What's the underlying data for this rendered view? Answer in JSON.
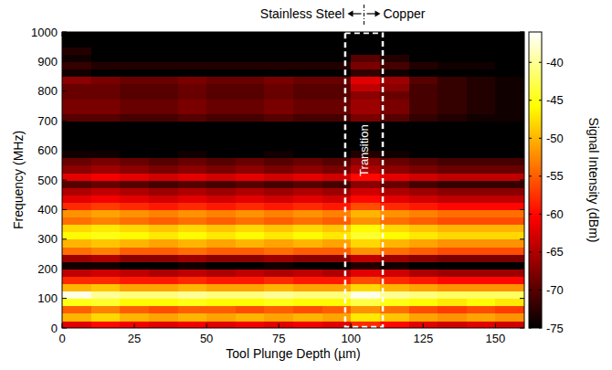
{
  "chart_data": {
    "type": "heatmap",
    "x_label": "Tool Plunge Depth (µm)",
    "y_label": "Frequency (MHz)",
    "xlim": [
      0,
      160
    ],
    "ylim": [
      0,
      1000
    ],
    "xticks": [
      0,
      25,
      50,
      75,
      100,
      125,
      150
    ],
    "yticks": [
      0,
      100,
      200,
      300,
      400,
      500,
      600,
      700,
      800,
      900,
      1000
    ],
    "x_bins": [
      0,
      10,
      20,
      30,
      40,
      50,
      60,
      70,
      80,
      90,
      100,
      110,
      120,
      130,
      140,
      150,
      160
    ],
    "y_bins": [
      0,
      25,
      50,
      75,
      100,
      125,
      150,
      175,
      200,
      225,
      250,
      275,
      300,
      325,
      350,
      375,
      400,
      425,
      450,
      475,
      500,
      525,
      550,
      575,
      600,
      625,
      650,
      675,
      700,
      725,
      750,
      775,
      800,
      825,
      850,
      875,
      900,
      925,
      950,
      975,
      1000
    ],
    "cells": [
      [
        -62,
        -60,
        -61,
        -62,
        -61,
        -62,
        -61,
        -62,
        -61,
        -62,
        -58,
        -60,
        -62,
        -63,
        -62,
        -63
      ],
      [
        -50,
        -48,
        -50,
        -51,
        -50,
        -51,
        -50,
        -51,
        -50,
        -51,
        -47,
        -49,
        -51,
        -52,
        -51,
        -52
      ],
      [
        -55,
        -53,
        -55,
        -56,
        -55,
        -55,
        -56,
        -55,
        -56,
        -55,
        -52,
        -54,
        -56,
        -57,
        -56,
        -57
      ],
      [
        -45,
        -44,
        -46,
        -46,
        -45,
        -46,
        -46,
        -45,
        -46,
        -46,
        -43,
        -45,
        -46,
        -47,
        -46,
        -47
      ],
      [
        -37,
        -40,
        -41,
        -41,
        -40,
        -41,
        -41,
        -40,
        -41,
        -41,
        -37,
        -40,
        -41,
        -42,
        -42,
        -42
      ],
      [
        -50,
        -49,
        -51,
        -51,
        -50,
        -51,
        -51,
        -50,
        -51,
        -51,
        -48,
        -50,
        -51,
        -52,
        -52,
        -52
      ],
      [
        -58,
        -58,
        -59,
        -59,
        -58,
        -59,
        -59,
        -58,
        -59,
        -59,
        -56,
        -58,
        -59,
        -60,
        -60,
        -60
      ],
      [
        -64,
        -63,
        -64,
        -65,
        -64,
        -65,
        -64,
        -65,
        -64,
        -65,
        -62,
        -63,
        -65,
        -66,
        -66,
        -66
      ],
      [
        -74,
        -74,
        -75,
        -75,
        -74,
        -75,
        -75,
        -74,
        -75,
        -75,
        -73,
        -74,
        -75,
        -75,
        -75,
        -75
      ],
      [
        -66,
        -65,
        -67,
        -67,
        -66,
        -67,
        -67,
        -66,
        -67,
        -67,
        -64,
        -66,
        -67,
        -68,
        -68,
        -68
      ],
      [
        -54,
        -53,
        -55,
        -55,
        -54,
        -55,
        -55,
        -54,
        -55,
        -55,
        -52,
        -54,
        -55,
        -56,
        -56,
        -56
      ],
      [
        -50,
        -49,
        -50,
        -51,
        -50,
        -51,
        -50,
        -51,
        -50,
        -51,
        -48,
        -50,
        -51,
        -52,
        -52,
        -52
      ],
      [
        -46,
        -45,
        -46,
        -47,
        -46,
        -47,
        -46,
        -47,
        -46,
        -47,
        -44,
        -46,
        -47,
        -48,
        -48,
        -48
      ],
      [
        -48,
        -47,
        -48,
        -49,
        -48,
        -49,
        -48,
        -49,
        -48,
        -49,
        -46,
        -48,
        -49,
        -50,
        -50,
        -50
      ],
      [
        -54,
        -53,
        -54,
        -55,
        -54,
        -55,
        -54,
        -55,
        -54,
        -55,
        -52,
        -54,
        -55,
        -56,
        -56,
        -56
      ],
      [
        -52,
        -51,
        -52,
        -53,
        -52,
        -53,
        -52,
        -53,
        -52,
        -53,
        -50,
        -52,
        -53,
        -54,
        -54,
        -54
      ],
      [
        -58,
        -57,
        -58,
        -59,
        -58,
        -59,
        -58,
        -59,
        -58,
        -59,
        -56,
        -58,
        -59,
        -60,
        -60,
        -60
      ],
      [
        -62,
        -61,
        -62,
        -63,
        -62,
        -63,
        -62,
        -63,
        -62,
        -63,
        -60,
        -62,
        -63,
        -64,
        -64,
        -64
      ],
      [
        -65,
        -64,
        -65,
        -66,
        -65,
        -66,
        -65,
        -66,
        -65,
        -66,
        -63,
        -65,
        -66,
        -67,
        -67,
        -67
      ],
      [
        -70,
        -69,
        -70,
        -71,
        -70,
        -71,
        -70,
        -71,
        -70,
        -71,
        -67,
        -69,
        -71,
        -72,
        -72,
        -72
      ],
      [
        -62,
        -61,
        -62,
        -63,
        -62,
        -63,
        -62,
        -63,
        -62,
        -63,
        -60,
        -62,
        -63,
        -64,
        -64,
        -64
      ],
      [
        -67,
        -66,
        -67,
        -68,
        -67,
        -68,
        -67,
        -68,
        -67,
        -68,
        -65,
        -67,
        -68,
        -69,
        -69,
        -69
      ],
      [
        -69,
        -68,
        -69,
        -70,
        -69,
        -70,
        -69,
        -70,
        -69,
        -70,
        -67,
        -69,
        -70,
        -71,
        -71,
        -71
      ],
      [
        -74,
        -74,
        -75,
        -75,
        -74,
        -75,
        -75,
        -74,
        -75,
        -75,
        -73,
        -74,
        -75,
        -75,
        -75,
        -75
      ],
      [
        -75,
        -75,
        -75,
        -75,
        -75,
        -75,
        -75,
        -75,
        -75,
        -75,
        -75,
        -75,
        -75,
        -75,
        -75,
        -75
      ],
      [
        -75,
        -75,
        -75,
        -75,
        -75,
        -75,
        -75,
        -75,
        -75,
        -75,
        -75,
        -75,
        -75,
        -75,
        -75,
        -75
      ],
      [
        -75,
        -75,
        -75,
        -75,
        -75,
        -75,
        -75,
        -75,
        -75,
        -75,
        -75,
        -75,
        -75,
        -75,
        -75,
        -75
      ],
      [
        -75,
        -75,
        -75,
        -75,
        -75,
        -75,
        -75,
        -75,
        -75,
        -75,
        -75,
        -75,
        -75,
        -75,
        -75,
        -75
      ],
      [
        -70,
        -70,
        -71,
        -71,
        -70,
        -71,
        -71,
        -70,
        -71,
        -71,
        -68,
        -70,
        -72,
        -73,
        -74,
        -74
      ],
      [
        -68,
        -68,
        -69,
        -69,
        -68,
        -69,
        -69,
        -68,
        -69,
        -69,
        -66,
        -68,
        -71,
        -72,
        -73,
        -74
      ],
      [
        -68,
        -68,
        -69,
        -69,
        -68,
        -69,
        -69,
        -68,
        -69,
        -69,
        -66,
        -68,
        -71,
        -72,
        -73,
        -74
      ],
      [
        -69,
        -69,
        -70,
        -70,
        -69,
        -70,
        -70,
        -69,
        -70,
        -70,
        -67,
        -69,
        -71,
        -72,
        -73,
        -74
      ],
      [
        -69,
        -69,
        -70,
        -70,
        -69,
        -70,
        -70,
        -69,
        -70,
        -70,
        -64,
        -67,
        -71,
        -72,
        -73,
        -74
      ],
      [
        -67,
        -68,
        -69,
        -69,
        -68,
        -69,
        -69,
        -68,
        -69,
        -69,
        -62,
        -66,
        -70,
        -72,
        -73,
        -74
      ],
      [
        -74,
        -75,
        -75,
        -75,
        -75,
        -75,
        -75,
        -75,
        -75,
        -75,
        -72,
        -74,
        -75,
        -75,
        -75,
        -75
      ],
      [
        -72,
        -73,
        -73,
        -73,
        -73,
        -73,
        -73,
        -73,
        -73,
        -73,
        -68,
        -71,
        -73,
        -74,
        -74,
        -75
      ],
      [
        -74,
        -75,
        -75,
        -75,
        -75,
        -75,
        -75,
        -75,
        -75,
        -75,
        -70,
        -73,
        -75,
        -75,
        -75,
        -75
      ],
      [
        -73,
        -75,
        -75,
        -75,
        -75,
        -75,
        -75,
        -75,
        -75,
        -75,
        -75,
        -75,
        -75,
        -75,
        -75,
        -75
      ],
      [
        -75,
        -75,
        -75,
        -75,
        -75,
        -75,
        -75,
        -75,
        -75,
        -75,
        -75,
        -75,
        -75,
        -75,
        -75,
        -75
      ],
      [
        -75,
        -75,
        -75,
        -75,
        -75,
        -75,
        -75,
        -75,
        -75,
        -75,
        -75,
        -75,
        -75,
        -75,
        -75,
        -75
      ]
    ],
    "colorbar": {
      "label": "Signal Intensity (dBm)",
      "range": [
        -75,
        -36
      ],
      "ticks": [
        -75,
        -70,
        -65,
        -60,
        -55,
        -50,
        -45,
        -40
      ]
    },
    "annotations": {
      "left_label": "Stainless Steel",
      "right_label": "Copper",
      "transition": {
        "label": "Transition",
        "x0": 98,
        "x1": 111
      }
    }
  }
}
